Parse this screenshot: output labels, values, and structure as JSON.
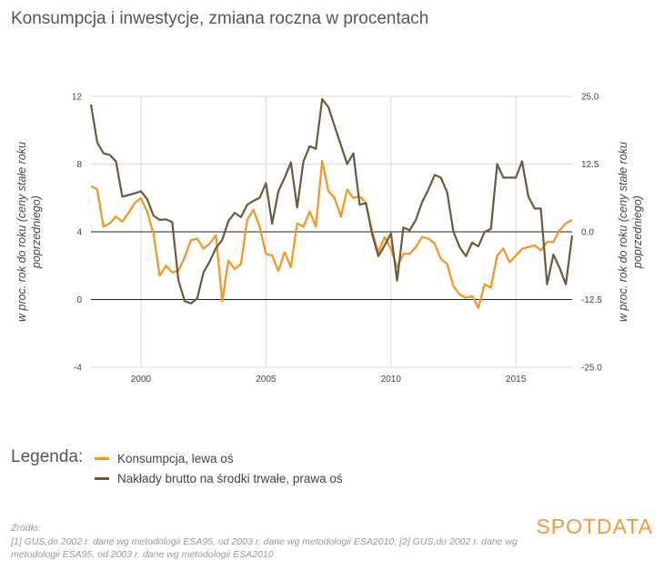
{
  "title": "Konsumpcja i inwestycje, zmiana roczna w procentach",
  "legend": {
    "title": "Legenda:",
    "items": [
      {
        "label": "Konsumpcja, lewa oś",
        "color": "#f7941d"
      },
      {
        "label": "Nakłady brutto na środki trwałe, prawa oś",
        "color": "#6b5a3a"
      }
    ]
  },
  "source": {
    "heading": "Źródło:",
    "text": "[1] GUS,do 2002 r. dane wg metodologii ESA95, od 2003 r. dane wg metodologii ESA2010; [2] GUS,do 2002 r. dane wg metodologii ESA95, od 2003 r. dane wg metodologii ESA2010"
  },
  "logo": {
    "text": "SPOTDATA"
  },
  "chart_data": {
    "type": "line",
    "title": "Konsumpcja i inwestycje, zmiana roczna w procentach",
    "xlabel": "",
    "ylabel_left": "w proc. rok do roku (ceny stałe roku poprzedniego)",
    "ylabel_right": "w proc. rok do roku (ceny stałe roku poprzedniego)",
    "xlim": [
      1998.0,
      2017.25
    ],
    "x_ticks": [
      2000,
      2005,
      2010,
      2015
    ],
    "x_tick_labels": [
      "2000",
      "2005",
      "2010",
      "2015"
    ],
    "ylim_left": [
      -4,
      12
    ],
    "y_ticks_left": [
      -4,
      0,
      4,
      8,
      12
    ],
    "y_tick_labels_left": [
      "-4",
      "0",
      "4",
      "8",
      "12"
    ],
    "ylim_right": [
      -25,
      25
    ],
    "y_ticks_right": [
      -25,
      -12.5,
      0,
      12.5,
      25
    ],
    "y_tick_labels_right": [
      "-25.0",
      "-12.5",
      "0.0",
      "12.5",
      "25.0"
    ],
    "reference_lines_left": [
      0,
      4
    ],
    "x_start": 1998.0,
    "x_step": 0.25,
    "series": [
      {
        "name": "Konsumpcja, lewa oś",
        "axis": "left",
        "color": "#f7941d",
        "values": [
          6.7,
          6.5,
          4.3,
          4.5,
          4.9,
          4.6,
          5.1,
          5.7,
          6.0,
          5.2,
          3.9,
          1.4,
          2.0,
          1.6,
          1.7,
          2.5,
          3.5,
          3.6,
          3.0,
          3.3,
          3.8,
          -0.1,
          2.3,
          1.8,
          2.1,
          4.7,
          5.3,
          4.3,
          2.7,
          2.6,
          1.7,
          2.8,
          1.9,
          4.5,
          4.3,
          5.2,
          4.3,
          8.2,
          6.4,
          6.0,
          4.9,
          6.5,
          6.0,
          6.1,
          5.7,
          4.0,
          2.8,
          3.7,
          3.0,
          1.9,
          2.7,
          2.7,
          3.1,
          3.7,
          3.6,
          3.3,
          2.4,
          2.1,
          0.8,
          0.3,
          0.1,
          0.2,
          -0.5,
          0.9,
          0.7,
          2.6,
          3.0,
          2.2,
          2.6,
          3.0,
          3.1,
          3.2,
          2.9,
          3.4,
          3.4,
          4.1,
          4.5,
          4.7
        ]
      },
      {
        "name": "Nakłady brutto na środki trwałe, prawa oś",
        "axis": "right",
        "color": "#6b5a3a",
        "values": [
          23.5,
          16.5,
          14.5,
          14.2,
          13.0,
          6.5,
          6.8,
          7.1,
          7.5,
          6.0,
          3.0,
          2.2,
          2.3,
          1.8,
          -9.0,
          -12.8,
          -13.2,
          -12.3,
          -7.5,
          -5.5,
          -3.0,
          -1.5,
          2.0,
          3.5,
          2.7,
          5.0,
          5.7,
          6.3,
          9.0,
          1.5,
          7.5,
          10.0,
          12.8,
          4.5,
          13.0,
          15.8,
          15.3,
          24.5,
          23.0,
          19.5,
          16.0,
          12.5,
          14.5,
          5.0,
          5.3,
          -0.5,
          -4.5,
          -2.5,
          -0.3,
          -9.0,
          0.8,
          0.3,
          2.2,
          5.5,
          7.8,
          10.5,
          10.0,
          7.3,
          0.0,
          -2.8,
          -4.5,
          -2.0,
          -2.7,
          0.0,
          0.5,
          12.5,
          10.0,
          10.0,
          10.0,
          13.0,
          6.5,
          4.3,
          4.3,
          -9.7,
          -4.2,
          -6.7,
          -9.7,
          -0.7
        ]
      }
    ]
  }
}
